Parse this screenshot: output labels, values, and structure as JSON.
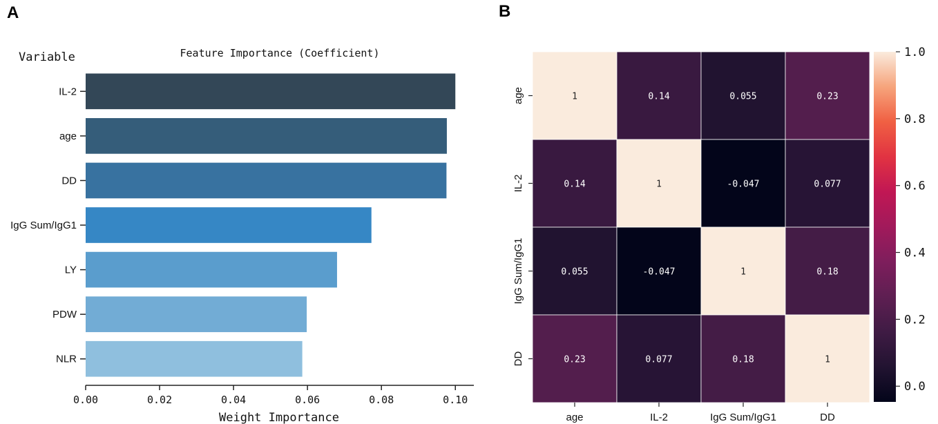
{
  "panels": {
    "left_letter": "A",
    "right_letter": "B"
  },
  "chart_data": [
    {
      "type": "bar",
      "orientation": "horizontal",
      "title": "Feature Importance (Coefficient)",
      "ylabel": "Variable",
      "xlabel": "Weight Importance",
      "categories": [
        "IL-2",
        "age",
        "DD",
        "IgG Sum/IgG1",
        "LY",
        "PDW",
        "NLR"
      ],
      "values": [
        0.1,
        0.0977,
        0.0976,
        0.0773,
        0.068,
        0.0598,
        0.0586
      ],
      "colors": [
        "#334757",
        "#355d7a",
        "#3872a0",
        "#3687c5",
        "#5a9dcd",
        "#72acd5",
        "#8fbfde"
      ],
      "xlim": [
        0,
        0.105
      ],
      "xticks": [
        0.0,
        0.02,
        0.04,
        0.06,
        0.08,
        0.1
      ],
      "xtick_labels": [
        "0.00",
        "0.02",
        "0.04",
        "0.06",
        "0.08",
        "0.10"
      ],
      "grid": false
    },
    {
      "type": "heatmap",
      "title": "",
      "labels": [
        "age",
        "IL-2",
        "IgG Sum/IgG1",
        "DD"
      ],
      "matrix": [
        [
          1,
          0.14,
          0.055,
          0.23
        ],
        [
          0.14,
          1,
          -0.047,
          0.077
        ],
        [
          0.055,
          -0.047,
          1,
          0.18
        ],
        [
          0.23,
          0.077,
          0.18,
          1
        ]
      ],
      "annotations": [
        [
          "1",
          "0.14",
          "0.055",
          "0.23"
        ],
        [
          "0.14",
          "1",
          "-0.047",
          "0.077"
        ],
        [
          "0.055",
          "-0.047",
          "1",
          "0.18"
        ],
        [
          "0.23",
          "0.077",
          "0.18",
          "1"
        ]
      ],
      "colorbar": {
        "vmin": -0.047,
        "vmax": 1.0,
        "ticks": [
          0.0,
          0.2,
          0.4,
          0.6,
          0.8,
          1.0
        ],
        "tick_labels": [
          "0.0",
          "0.2",
          "0.4",
          "0.6",
          "0.8",
          "1.0"
        ],
        "colormap": "rocket"
      }
    }
  ]
}
